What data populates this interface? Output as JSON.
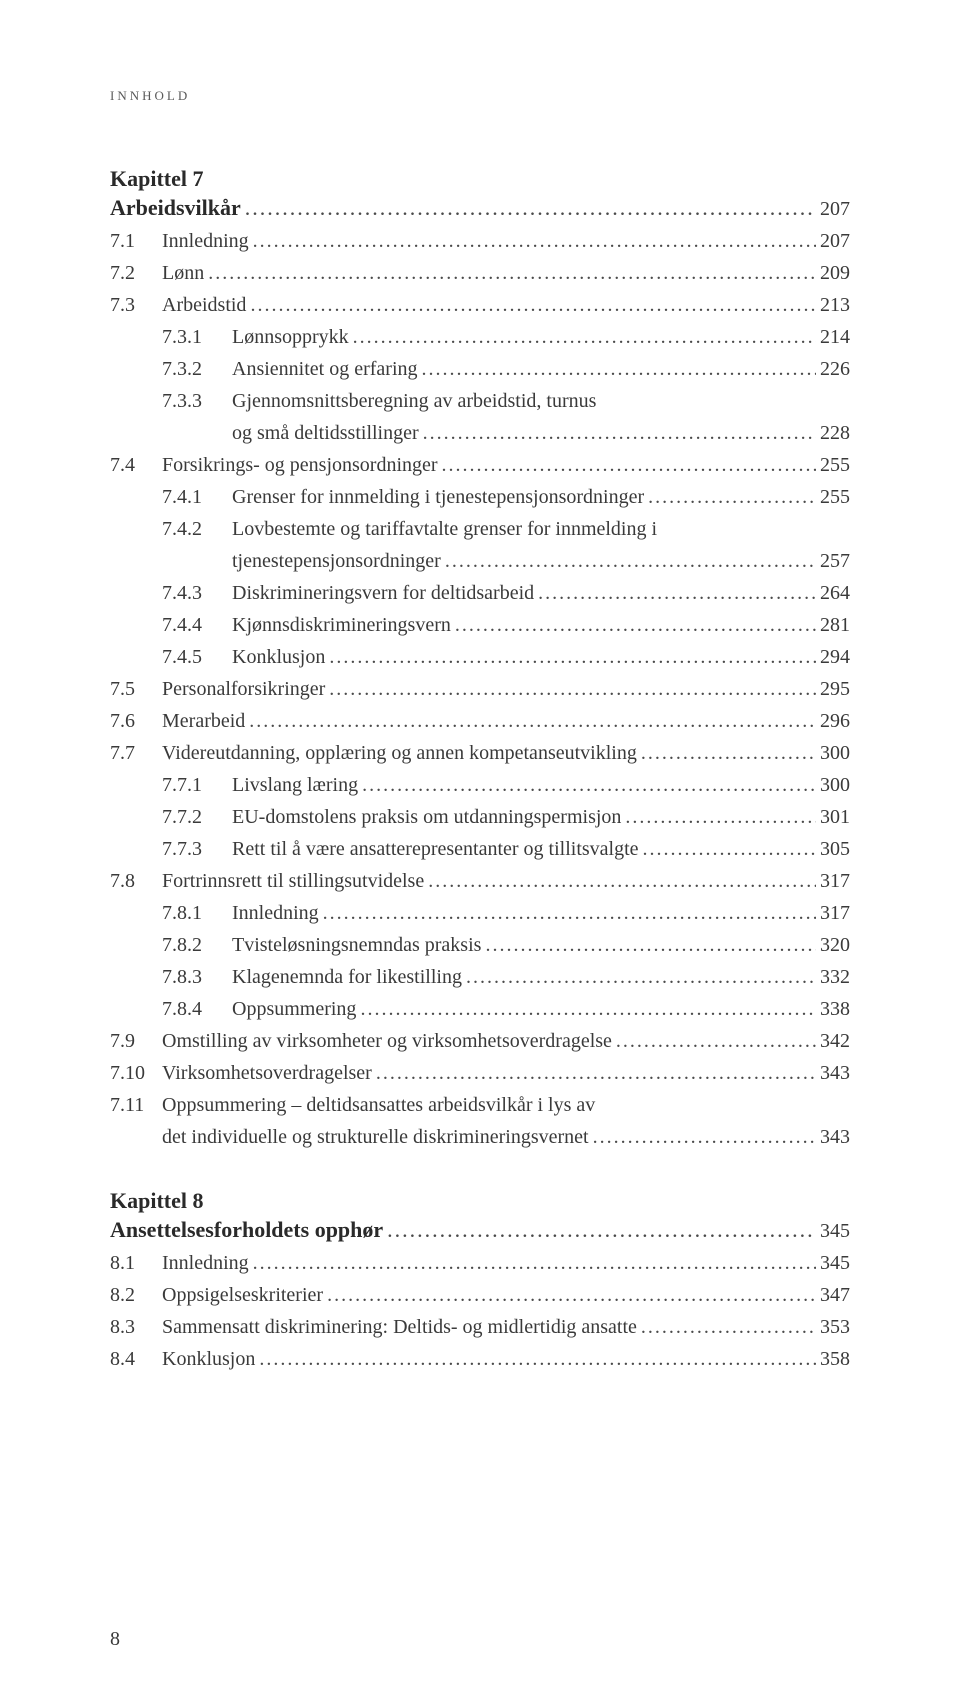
{
  "header": "INNHOLD",
  "page_number": "8",
  "dots": ".........................................................................................................................................................",
  "chapters": [
    {
      "title": "Kapittel 7",
      "subtitle": "Arbeidsvilkår",
      "subtitle_page": "207",
      "entries": [
        {
          "num": "7.1",
          "label": "Innledning",
          "page": "207",
          "level": 1
        },
        {
          "num": "7.2",
          "label": "Lønn",
          "page": "209",
          "level": 1
        },
        {
          "num": "7.3",
          "label": "Arbeidstid",
          "page": "213",
          "level": 1
        },
        {
          "num": "7.3.1",
          "label": "Lønnsopprykk",
          "page": "214",
          "level": 2
        },
        {
          "num": "7.3.2",
          "label": "Ansiennitet og erfaring",
          "page": "226",
          "level": 2
        },
        {
          "num": "7.3.3",
          "label": "Gjennomsnittsberegning av arbeidstid, turnus",
          "cont": "og små deltidsstillinger",
          "page": "228",
          "level": 2
        },
        {
          "num": "7.4",
          "label": "Forsikrings- og pensjonsordninger",
          "page": "255",
          "level": 1
        },
        {
          "num": "7.4.1",
          "label": "Grenser for innmelding i tjenestepensjonsordninger",
          "page": "255",
          "level": 2
        },
        {
          "num": "7.4.2",
          "label": "Lovbestemte og tariffavtalte grenser for innmelding i",
          "cont": "tjenestepensjonsordninger",
          "page": "257",
          "level": 2
        },
        {
          "num": "7.4.3",
          "label": "Diskrimineringsvern for deltidsarbeid",
          "page": "264",
          "level": 2
        },
        {
          "num": "7.4.4",
          "label": "Kjønnsdiskrimineringsvern",
          "page": "281",
          "level": 2
        },
        {
          "num": "7.4.5",
          "label": "Konklusjon",
          "page": "294",
          "level": 2
        },
        {
          "num": "7.5",
          "label": "Personalforsikringer",
          "page": "295",
          "level": 1
        },
        {
          "num": "7.6",
          "label": "Merarbeid",
          "page": "296",
          "level": 1
        },
        {
          "num": "7.7",
          "label": "Videreutdanning, opplæring og annen kompetanseutvikling",
          "page": "300",
          "level": 1
        },
        {
          "num": "7.7.1",
          "label": "Livslang læring",
          "page": "300",
          "level": 2
        },
        {
          "num": "7.7.2",
          "label": "EU-domstolens praksis om utdanningspermisjon",
          "page": "301",
          "level": 2
        },
        {
          "num": "7.7.3",
          "label": "Rett til å være ansatterepresentanter og tillitsvalgte",
          "page": "305",
          "level": 2
        },
        {
          "num": "7.8",
          "label": "Fortrinnsrett til stillingsutvidelse",
          "page": "317",
          "level": 1
        },
        {
          "num": "7.8.1",
          "label": "Innledning",
          "page": "317",
          "level": 2
        },
        {
          "num": "7.8.2",
          "label": "Tvisteløsningsnemndas praksis",
          "page": "320",
          "level": 2
        },
        {
          "num": "7.8.3",
          "label": "Klagenemnda for likestilling",
          "page": "332",
          "level": 2
        },
        {
          "num": "7.8.4",
          "label": "Oppsummering",
          "page": "338",
          "level": 2
        },
        {
          "num": "7.9",
          "label": "Omstilling av virksomheter og virksomhetsoverdragelse",
          "page": "342",
          "level": 1
        },
        {
          "num": "7.10",
          "label": "Virksomhetsoverdragelser",
          "page": "343",
          "level": 1
        },
        {
          "num": "7.11",
          "label": "Oppsummering – deltidsansattes arbeidsvilkår i lys av",
          "cont_level1": "det individuelle og strukturelle diskrimineringsvernet",
          "page": "343",
          "level": 1
        }
      ]
    },
    {
      "title": "Kapittel 8",
      "subtitle": "Ansettelsesforholdets opphør",
      "subtitle_page": "345",
      "entries": [
        {
          "num": "8.1",
          "label": "Innledning",
          "page": "345",
          "level": 1
        },
        {
          "num": "8.2",
          "label": "Oppsigelseskriterier",
          "page": "347",
          "level": 1
        },
        {
          "num": "8.3",
          "label": "Sammensatt diskriminering: Deltids- og midlertidig ansatte",
          "page": "353",
          "level": 1
        },
        {
          "num": "8.4",
          "label": "Konklusjon",
          "page": "358",
          "level": 1
        }
      ]
    }
  ]
}
